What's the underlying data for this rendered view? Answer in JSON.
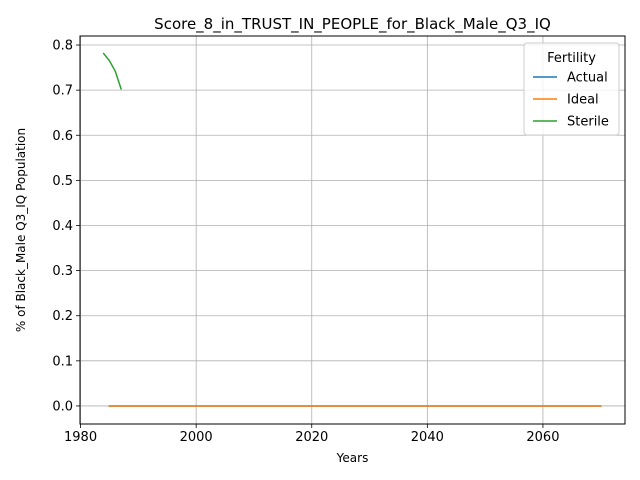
{
  "chart_data": {
    "type": "line",
    "title": "Score_8_in_TRUST_IN_PEOPLE_for_Black_Male_Q3_IQ",
    "xlabel": "Years",
    "ylabel": "% of Black_Male Q3_IQ Population",
    "xlim": [
      1979.9,
      2074.2
    ],
    "ylim": [
      -0.04,
      0.82
    ],
    "xticks": [
      1980,
      2000,
      2020,
      2040,
      2060
    ],
    "yticks": [
      0.0,
      0.1,
      0.2,
      0.3,
      0.4,
      0.5,
      0.6,
      0.7,
      0.8
    ],
    "ytick_labels": [
      "0.0",
      "0.1",
      "0.2",
      "0.3",
      "0.4",
      "0.5",
      "0.6",
      "0.7",
      "0.8"
    ],
    "grid": true,
    "legend": {
      "title": "Fertility",
      "position": "top-right"
    },
    "series": [
      {
        "name": "Actual",
        "color": "#1f77b4",
        "x": [
          1985,
          1990,
          1995,
          2000,
          2005,
          2010,
          2015,
          2020,
          2025,
          2030,
          2035,
          2040,
          2045,
          2050,
          2055,
          2060,
          2065,
          2070
        ],
        "y": [
          0,
          0,
          0,
          0,
          0,
          0,
          0,
          0,
          0,
          0,
          0,
          0,
          0,
          0,
          0,
          0,
          0,
          0
        ]
      },
      {
        "name": "Ideal",
        "color": "#ff7f0e",
        "x": [
          1985,
          1990,
          1995,
          2000,
          2005,
          2010,
          2015,
          2020,
          2025,
          2030,
          2035,
          2040,
          2045,
          2050,
          2055,
          2060,
          2065,
          2070
        ],
        "y": [
          0,
          0,
          0,
          0,
          0,
          0,
          0,
          0,
          0,
          0,
          0,
          0,
          0,
          0,
          0,
          0,
          0,
          0
        ]
      },
      {
        "name": "Sterile",
        "color": "#2ca02c",
        "x": [
          1984,
          1985,
          1986,
          1987
        ],
        "y": [
          0.781,
          0.765,
          0.742,
          0.703
        ]
      }
    ]
  }
}
